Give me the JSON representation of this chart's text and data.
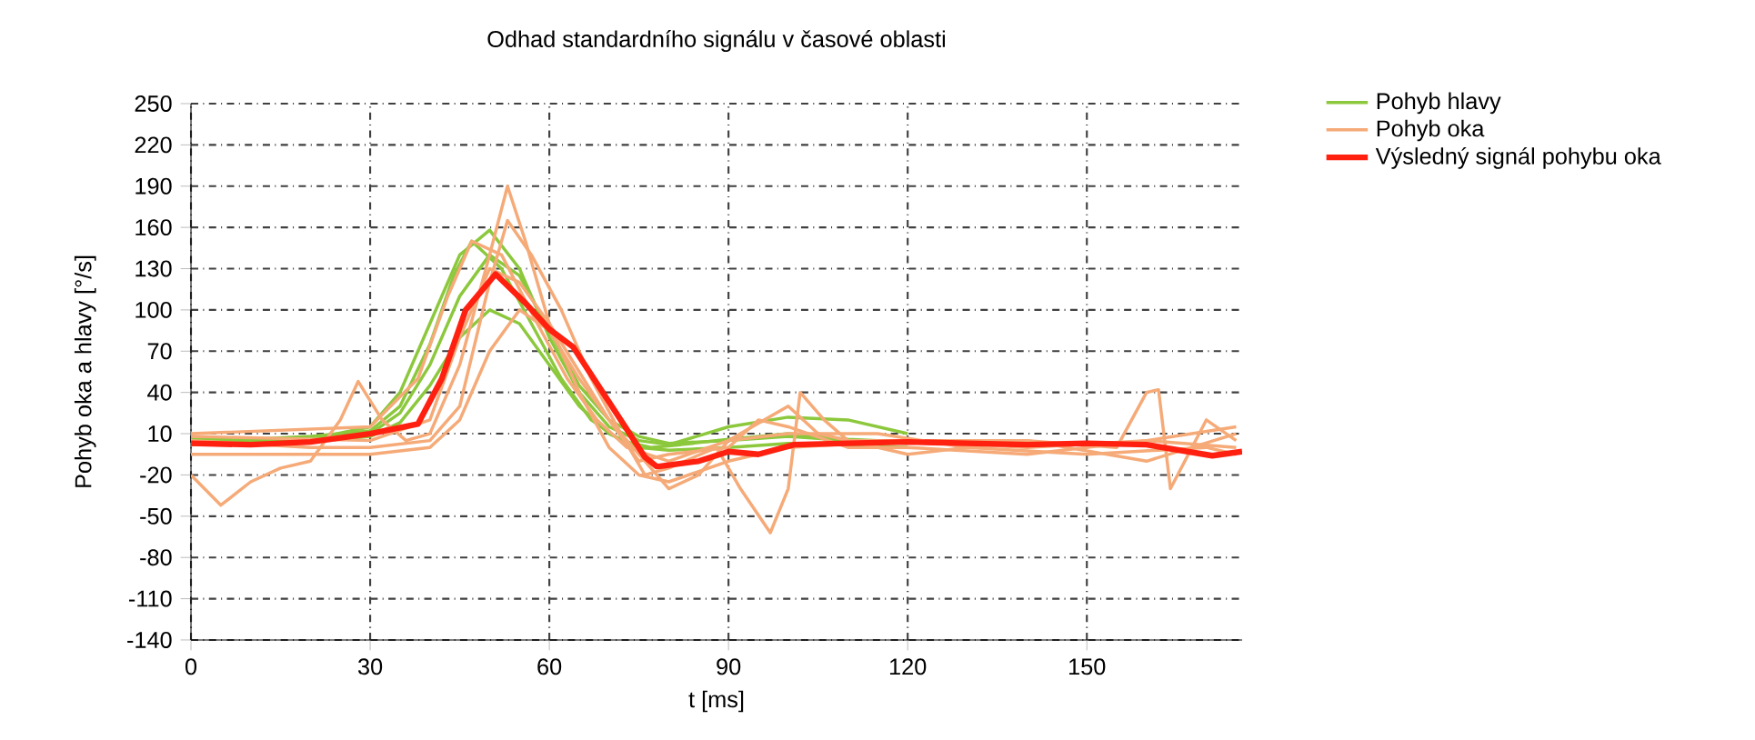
{
  "chart_data": {
    "type": "line",
    "title": "Odhad standardního signálu v časové oblasti",
    "xlabel": "t [ms]",
    "ylabel": "Pohyb oka a hlavy [°/s]",
    "xlim": [
      0,
      176
    ],
    "xticks": [
      0,
      30,
      60,
      90,
      120,
      150
    ],
    "ylim": [
      -140,
      250
    ],
    "yticks": [
      -140,
      -110,
      -80,
      -50,
      -20,
      10,
      40,
      70,
      100,
      130,
      160,
      190,
      220,
      250
    ],
    "grid": true,
    "legend": "top right",
    "series": [
      {
        "name": "Pohyb hlavy",
        "color": "#8cc83c",
        "x": [
          0,
          10,
          20,
          30,
          35,
          40,
          45,
          50,
          55,
          60,
          65,
          70,
          75,
          80,
          90,
          100,
          110,
          120
        ],
        "values": [
          5,
          5,
          6,
          15,
          40,
          90,
          140,
          158,
          130,
          80,
          40,
          15,
          5,
          2,
          15,
          22,
          20,
          10
        ]
      },
      {
        "color": "#8cc83c",
        "x": [
          0,
          10,
          20,
          30,
          35,
          40,
          45,
          50,
          55,
          60,
          65,
          70,
          75,
          80,
          90,
          100,
          110,
          120
        ],
        "values": [
          3,
          4,
          5,
          10,
          25,
          60,
          110,
          140,
          125,
          85,
          45,
          20,
          8,
          3,
          5,
          8,
          5,
          3
        ]
      },
      {
        "color": "#8cc83c",
        "x": [
          0,
          10,
          20,
          30,
          35,
          40,
          45,
          50,
          55,
          60,
          65,
          70,
          75,
          80,
          90,
          100,
          110,
          120
        ],
        "values": [
          2,
          3,
          4,
          8,
          18,
          45,
          80,
          100,
          90,
          60,
          30,
          10,
          0,
          -2,
          0,
          3,
          2,
          0
        ]
      },
      {
        "color": "#8cc83c",
        "x": [
          0,
          10,
          20,
          30,
          35,
          40,
          44,
          47,
          52,
          57,
          62,
          67,
          72,
          77,
          82,
          90,
          100,
          110,
          120
        ],
        "values": [
          6,
          6,
          8,
          12,
          30,
          75,
          125,
          150,
          130,
          90,
          50,
          20,
          5,
          0,
          2,
          6,
          10,
          6,
          4
        ]
      },
      {
        "name": "Pohyb oka",
        "color": "#f5aa78",
        "x": [
          0,
          5,
          10,
          15,
          20,
          25,
          28,
          32,
          36,
          40,
          45,
          50,
          53,
          56,
          60,
          65,
          70,
          75,
          80,
          90,
          100,
          120,
          140,
          160,
          175
        ],
        "values": [
          -20,
          -42,
          -25,
          -15,
          -10,
          20,
          48,
          20,
          5,
          10,
          60,
          140,
          190,
          150,
          90,
          40,
          0,
          -20,
          -25,
          -10,
          0,
          5,
          0,
          5,
          0
        ]
      },
      {
        "color": "#f5aa78",
        "x": [
          0,
          20,
          30,
          40,
          45,
          50,
          53,
          57,
          62,
          67,
          72,
          76,
          80,
          88,
          92,
          97,
          100,
          102,
          106,
          110,
          120,
          140,
          155,
          160,
          162,
          164,
          167,
          170,
          175
        ],
        "values": [
          5,
          0,
          0,
          5,
          30,
          120,
          165,
          140,
          100,
          50,
          10,
          -20,
          -15,
          0,
          -30,
          -62,
          -30,
          40,
          20,
          5,
          5,
          5,
          0,
          40,
          42,
          -30,
          -5,
          20,
          5
        ]
      },
      {
        "color": "#f5aa78",
        "x": [
          0,
          30,
          40,
          45,
          50,
          55,
          60,
          65,
          70,
          75,
          80,
          90,
          95,
          100,
          110,
          120,
          140,
          160,
          175
        ],
        "values": [
          8,
          5,
          20,
          80,
          130,
          120,
          90,
          55,
          20,
          -10,
          -5,
          0,
          20,
          15,
          0,
          0,
          -5,
          5,
          15
        ]
      },
      {
        "color": "#f5aa78",
        "x": [
          0,
          30,
          40,
          45,
          50,
          55,
          60,
          65,
          70,
          75,
          80,
          85,
          90,
          100,
          115,
          130,
          150,
          170,
          175
        ],
        "values": [
          -5,
          -5,
          0,
          20,
          70,
          100,
          85,
          50,
          20,
          -5,
          -30,
          -20,
          5,
          10,
          10,
          0,
          -5,
          0,
          -5
        ]
      },
      {
        "color": "#f5aa78",
        "x": [
          0,
          30,
          38,
          43,
          47,
          52,
          58,
          63,
          68,
          73,
          80,
          90,
          100,
          105,
          120,
          140,
          160,
          175
        ],
        "values": [
          10,
          15,
          50,
          110,
          150,
          140,
          90,
          50,
          20,
          0,
          -10,
          5,
          30,
          10,
          -5,
          5,
          -10,
          10
        ]
      },
      {
        "name": "Výsledný signál pohybu oka",
        "color": "#ff2010",
        "x": [
          0,
          10,
          20,
          30,
          38,
          42,
          46,
          51,
          56,
          60,
          64,
          70,
          76,
          78,
          85,
          90,
          95,
          101,
          110,
          120,
          130,
          140,
          150,
          160,
          171,
          176
        ],
        "values": [
          3,
          2,
          4,
          10,
          17,
          50,
          100,
          126,
          105,
          86,
          73,
          33,
          -7,
          -14,
          -10,
          -3,
          -5,
          2,
          3,
          4,
          3,
          2,
          3,
          2,
          -6,
          -3
        ]
      }
    ]
  }
}
